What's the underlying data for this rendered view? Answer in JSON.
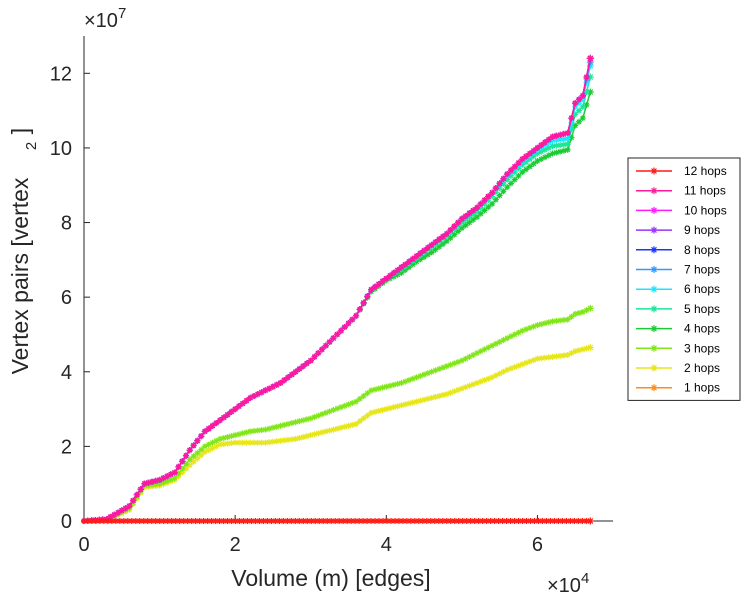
{
  "chart_data": {
    "type": "line",
    "xlabel": "Volume (m) [edges]",
    "ylabel": "Vertex pairs [vertex",
    "ylabel_exp": "2",
    "ylabel_close": "]",
    "x_multiplier": "×10",
    "x_multiplier_exp": "4",
    "y_multiplier": "×10",
    "y_multiplier_exp": "7",
    "xlim": [
      0,
      70000
    ],
    "ylim": [
      0,
      130000000
    ],
    "x_ticks": [
      0,
      20000,
      40000,
      60000
    ],
    "x_tick_labels": [
      "0",
      "2",
      "4",
      "6"
    ],
    "y_ticks": [
      0,
      20000000,
      40000000,
      60000000,
      80000000,
      100000000,
      120000000
    ],
    "y_tick_labels": [
      "0",
      "2",
      "4",
      "6",
      "8",
      "10",
      "12"
    ],
    "grid": false,
    "legend_position": "outside-right",
    "series": [
      {
        "name": "12 hops",
        "color": "#ff1a1a",
        "x": [
          0,
          67000
        ],
        "y": [
          0,
          0
        ]
      },
      {
        "name": "11 hops",
        "color": "#ff1a9a",
        "x": [
          0,
          3000,
          6000,
          8000,
          10000,
          12000,
          14000,
          16000,
          18000,
          20000,
          22000,
          24000,
          26000,
          28000,
          30000,
          32000,
          34000,
          36000,
          38000,
          40000,
          42000,
          44000,
          46000,
          48000,
          50000,
          52000,
          54000,
          56000,
          58000,
          60000,
          62000,
          64000,
          65000,
          66000,
          67000
        ],
        "y": [
          0,
          500000,
          4000000,
          10000000,
          11000000,
          13000000,
          19000000,
          24000000,
          27000000,
          30000000,
          33000000,
          35000000,
          37000000,
          40000000,
          43000000,
          47000000,
          51000000,
          55000000,
          62000000,
          65000000,
          68000000,
          71000000,
          74000000,
          77000000,
          81000000,
          84000000,
          88000000,
          93000000,
          97000000,
          100000000,
          103000000,
          104000000,
          112000000,
          114000000,
          124000000
        ]
      },
      {
        "name": "10 hops",
        "color": "#ff1aff",
        "x": [
          0,
          3000,
          6000,
          8000,
          10000,
          12000,
          14000,
          16000,
          18000,
          20000,
          22000,
          24000,
          26000,
          28000,
          30000,
          32000,
          34000,
          36000,
          38000,
          40000,
          42000,
          44000,
          46000,
          48000,
          50000,
          52000,
          54000,
          56000,
          58000,
          60000,
          62000,
          64000,
          65000,
          66000,
          67000
        ],
        "y": [
          0,
          500000,
          4000000,
          10000000,
          11000000,
          13000000,
          19000000,
          24000000,
          27000000,
          30000000,
          33000000,
          35000000,
          37000000,
          40000000,
          43000000,
          47000000,
          51000000,
          55000000,
          62000000,
          65000000,
          68000000,
          71000000,
          74000000,
          77000000,
          81000000,
          84000000,
          88000000,
          93000000,
          97000000,
          100000000,
          103000000,
          104000000,
          112000000,
          114000000,
          124000000
        ]
      },
      {
        "name": "9 hops",
        "color": "#9a33ff",
        "x": [
          0,
          3000,
          6000,
          8000,
          10000,
          12000,
          14000,
          16000,
          18000,
          20000,
          22000,
          24000,
          26000,
          28000,
          30000,
          32000,
          34000,
          36000,
          38000,
          40000,
          42000,
          44000,
          46000,
          48000,
          50000,
          52000,
          54000,
          56000,
          58000,
          60000,
          62000,
          64000,
          65000,
          66000,
          67000
        ],
        "y": [
          0,
          500000,
          4000000,
          10000000,
          11000000,
          13000000,
          19000000,
          24000000,
          27000000,
          30000000,
          33000000,
          35000000,
          37000000,
          40000000,
          43000000,
          47000000,
          51000000,
          55000000,
          62000000,
          65000000,
          68000000,
          71000000,
          74000000,
          77000000,
          81000000,
          84000000,
          88000000,
          93000000,
          97000000,
          100000000,
          103000000,
          104000000,
          112000000,
          114000000,
          124000000
        ]
      },
      {
        "name": "8 hops",
        "color": "#1a33ff",
        "x": [
          0,
          3000,
          6000,
          8000,
          10000,
          12000,
          14000,
          16000,
          18000,
          20000,
          22000,
          24000,
          26000,
          28000,
          30000,
          32000,
          34000,
          36000,
          38000,
          40000,
          42000,
          44000,
          46000,
          48000,
          50000,
          52000,
          54000,
          56000,
          58000,
          60000,
          62000,
          64000,
          65000,
          66000,
          67000
        ],
        "y": [
          0,
          500000,
          4000000,
          10000000,
          11000000,
          13000000,
          19000000,
          24000000,
          27000000,
          30000000,
          33000000,
          35000000,
          37000000,
          40000000,
          43000000,
          47000000,
          51000000,
          55000000,
          62000000,
          65000000,
          68000000,
          71000000,
          74000000,
          77000000,
          81000000,
          84000000,
          88000000,
          93000000,
          97000000,
          100000000,
          103000000,
          104000000,
          112000000,
          114000000,
          124000000
        ]
      },
      {
        "name": "7 hops",
        "color": "#3399ff",
        "x": [
          0,
          3000,
          6000,
          8000,
          10000,
          12000,
          14000,
          16000,
          18000,
          20000,
          22000,
          24000,
          26000,
          28000,
          30000,
          32000,
          34000,
          36000,
          38000,
          40000,
          42000,
          44000,
          46000,
          48000,
          50000,
          52000,
          54000,
          56000,
          58000,
          60000,
          62000,
          64000,
          65000,
          66000,
          67000
        ],
        "y": [
          0,
          500000,
          4000000,
          10000000,
          11000000,
          13000000,
          19000000,
          24000000,
          27000000,
          30000000,
          33000000,
          35000000,
          37000000,
          40000000,
          43000000,
          47000000,
          51000000,
          55000000,
          62000000,
          65000000,
          68000000,
          71000000,
          74000000,
          77000000,
          81000000,
          84000000,
          88000000,
          93000000,
          97000000,
          100000000,
          103000000,
          104000000,
          112000000,
          114000000,
          123000000
        ]
      },
      {
        "name": "6 hops",
        "color": "#1ae6ff",
        "x": [
          0,
          3000,
          6000,
          8000,
          10000,
          12000,
          14000,
          16000,
          18000,
          20000,
          22000,
          24000,
          26000,
          28000,
          30000,
          32000,
          34000,
          36000,
          38000,
          40000,
          42000,
          44000,
          46000,
          48000,
          50000,
          52000,
          54000,
          56000,
          58000,
          60000,
          62000,
          64000,
          65000,
          66000,
          67000
        ],
        "y": [
          0,
          500000,
          4000000,
          10000000,
          11000000,
          13000000,
          19000000,
          24000000,
          27000000,
          30000000,
          33000000,
          35000000,
          37000000,
          40000000,
          43000000,
          47000000,
          51000000,
          55000000,
          62000000,
          65000000,
          68000000,
          71000000,
          74000000,
          77000000,
          81000000,
          84000000,
          88000000,
          92500000,
          96500000,
          99500000,
          102000000,
          102500000,
          111000000,
          113000000,
          122000000
        ]
      },
      {
        "name": "5 hops",
        "color": "#1ae699",
        "x": [
          0,
          3000,
          6000,
          8000,
          10000,
          12000,
          14000,
          16000,
          18000,
          20000,
          22000,
          24000,
          26000,
          28000,
          30000,
          32000,
          34000,
          36000,
          38000,
          40000,
          42000,
          44000,
          46000,
          48000,
          50000,
          52000,
          54000,
          56000,
          58000,
          60000,
          62000,
          64000,
          65000,
          66000,
          67000
        ],
        "y": [
          0,
          500000,
          4000000,
          10000000,
          11000000,
          13000000,
          19000000,
          24000000,
          27000000,
          30000000,
          33000000,
          35000000,
          37000000,
          40000000,
          43000000,
          47000000,
          51000000,
          55000000,
          62000000,
          65000000,
          67500000,
          70500000,
          73500000,
          76500000,
          80000000,
          83000000,
          87000000,
          91500000,
          95500000,
          98500000,
          100500000,
          101000000,
          109000000,
          111000000,
          119000000
        ]
      },
      {
        "name": "4 hops",
        "color": "#1acc33",
        "x": [
          0,
          3000,
          6000,
          8000,
          10000,
          12000,
          14000,
          16000,
          18000,
          20000,
          22000,
          24000,
          26000,
          28000,
          30000,
          32000,
          34000,
          36000,
          38000,
          40000,
          42000,
          44000,
          46000,
          48000,
          50000,
          52000,
          54000,
          56000,
          58000,
          60000,
          62000,
          64000,
          65000,
          66000,
          67000
        ],
        "y": [
          0,
          500000,
          4000000,
          10000000,
          11000000,
          13000000,
          19000000,
          24000000,
          27000000,
          30000000,
          33000000,
          35000000,
          37000000,
          40000000,
          43000000,
          47000000,
          51000000,
          55000000,
          61500000,
          64500000,
          66500000,
          69500000,
          72000000,
          75000000,
          78500000,
          81500000,
          85000000,
          89500000,
          93500000,
          96500000,
          98500000,
          99500000,
          106000000,
          108000000,
          115000000
        ]
      },
      {
        "name": "3 hops",
        "color": "#80e61a",
        "x": [
          0,
          3000,
          6000,
          8000,
          10000,
          12000,
          14000,
          16000,
          18000,
          20000,
          22000,
          24000,
          26000,
          28000,
          30000,
          32000,
          34000,
          36000,
          38000,
          40000,
          42000,
          44000,
          46000,
          48000,
          50000,
          52000,
          54000,
          56000,
          58000,
          60000,
          62000,
          64000,
          65000,
          66000,
          67000
        ],
        "y": [
          0,
          300000,
          3500000,
          9500000,
          10000000,
          11500000,
          16500000,
          20000000,
          22000000,
          23000000,
          24000000,
          24500000,
          25500000,
          26500000,
          27500000,
          29000000,
          30500000,
          32000000,
          35000000,
          36000000,
          37000000,
          38500000,
          40000000,
          41500000,
          43000000,
          45000000,
          47000000,
          49000000,
          51000000,
          52500000,
          53500000,
          54000000,
          55500000,
          56000000,
          57000000
        ]
      },
      {
        "name": "2 hops",
        "color": "#e6e61a",
        "x": [
          0,
          3000,
          6000,
          8000,
          10000,
          12000,
          14000,
          16000,
          18000,
          20000,
          22000,
          24000,
          26000,
          28000,
          30000,
          32000,
          34000,
          36000,
          38000,
          40000,
          42000,
          44000,
          46000,
          48000,
          50000,
          52000,
          54000,
          56000,
          58000,
          60000,
          62000,
          64000,
          65000,
          66000,
          67000
        ],
        "y": [
          0,
          200000,
          3000000,
          9000000,
          9500000,
          11000000,
          15000000,
          18500000,
          20500000,
          21000000,
          21000000,
          21000000,
          21500000,
          22000000,
          23000000,
          24000000,
          25000000,
          26000000,
          29000000,
          30000000,
          31000000,
          32000000,
          33000000,
          34000000,
          35500000,
          37000000,
          38500000,
          40500000,
          42000000,
          43500000,
          44000000,
          44500000,
          45500000,
          46000000,
          46500000
        ]
      },
      {
        "name": "1 hops",
        "color": "#ff8c1a",
        "x": [
          0,
          67000
        ],
        "y": [
          0,
          0
        ]
      }
    ]
  }
}
